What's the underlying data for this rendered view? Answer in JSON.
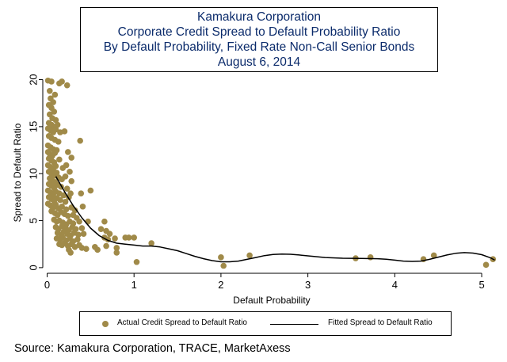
{
  "chart_data": {
    "type": "scatter",
    "title_lines": [
      "Kamakura Corporation",
      "Corporate Credit Spread to Default Probability Ratio",
      "By Default Probability, Fixed Rate Non-Call Senior Bonds",
      "August 6, 2014"
    ],
    "xlabel": "Default Probability",
    "ylabel": "Spread to Default Ratio",
    "xlim": [
      -0.05,
      5.2
    ],
    "ylim": [
      -0.6,
      20.3
    ],
    "x_ticks": [
      0,
      1,
      2,
      3,
      4,
      5
    ],
    "y_ticks": [
      0,
      5,
      10,
      15,
      20
    ],
    "grid": false,
    "legend": "bottom",
    "series": [
      {
        "name": "Actual Credit Spread to Default Ratio",
        "kind": "scatter",
        "color": "#a08a49",
        "points": [
          [
            0.01,
            19.9
          ],
          [
            0.05,
            19.8
          ],
          [
            0.14,
            19.6
          ],
          [
            0.17,
            19.8
          ],
          [
            0.23,
            19.4
          ],
          [
            0.03,
            18.8
          ],
          [
            0.09,
            18.4
          ],
          [
            0.04,
            18.0
          ],
          [
            0.07,
            17.6
          ],
          [
            0.02,
            17.3
          ],
          [
            0.05,
            17.0
          ],
          [
            0.08,
            16.6
          ],
          [
            0.03,
            16.3
          ],
          [
            0.06,
            15.9
          ],
          [
            0.1,
            15.7
          ],
          [
            0.02,
            15.4
          ],
          [
            0.05,
            15.2
          ],
          [
            0.08,
            15.0
          ],
          [
            0.12,
            15.2
          ],
          [
            0.01,
            14.8
          ],
          [
            0.04,
            14.6
          ],
          [
            0.07,
            14.4
          ],
          [
            0.1,
            14.7
          ],
          [
            0.15,
            14.4
          ],
          [
            0.2,
            14.5
          ],
          [
            0.02,
            14.0
          ],
          [
            0.05,
            13.8
          ],
          [
            0.09,
            13.6
          ],
          [
            0.13,
            13.4
          ],
          [
            0.38,
            13.5
          ],
          [
            0.01,
            13.0
          ],
          [
            0.04,
            12.8
          ],
          [
            0.07,
            12.6
          ],
          [
            0.11,
            12.5
          ],
          [
            0.01,
            12.3
          ],
          [
            0.03,
            12.1
          ],
          [
            0.06,
            11.9
          ],
          [
            0.09,
            12.2
          ],
          [
            0.24,
            12.3
          ],
          [
            0.02,
            11.6
          ],
          [
            0.05,
            11.4
          ],
          [
            0.08,
            11.2
          ],
          [
            0.14,
            11.5
          ],
          [
            0.28,
            11.7
          ],
          [
            0.01,
            10.9
          ],
          [
            0.04,
            10.7
          ],
          [
            0.07,
            10.5
          ],
          [
            0.1,
            10.8
          ],
          [
            0.18,
            10.6
          ],
          [
            0.22,
            10.9
          ],
          [
            0.02,
            10.2
          ],
          [
            0.05,
            10.0
          ],
          [
            0.08,
            9.8
          ],
          [
            0.11,
            10.1
          ],
          [
            0.26,
            10.2
          ],
          [
            0.03,
            9.5
          ],
          [
            0.06,
            9.3
          ],
          [
            0.09,
            9.1
          ],
          [
            0.13,
            9.6
          ],
          [
            0.17,
            9.4
          ],
          [
            0.28,
            9.2
          ],
          [
            0.21,
            9.7
          ],
          [
            0.02,
            8.9
          ],
          [
            0.05,
            8.7
          ],
          [
            0.08,
            8.5
          ],
          [
            0.12,
            8.8
          ],
          [
            0.16,
            8.6
          ],
          [
            0.23,
            8.4
          ],
          [
            0.01,
            8.2
          ],
          [
            0.04,
            8.0
          ],
          [
            0.07,
            7.8
          ],
          [
            0.1,
            8.1
          ],
          [
            0.14,
            7.9
          ],
          [
            0.19,
            7.7
          ],
          [
            0.27,
            7.9
          ],
          [
            0.39,
            7.9
          ],
          [
            0.5,
            8.2
          ],
          [
            0.02,
            7.5
          ],
          [
            0.05,
            7.3
          ],
          [
            0.08,
            7.1
          ],
          [
            0.11,
            7.4
          ],
          [
            0.15,
            7.2
          ],
          [
            0.21,
            7.0
          ],
          [
            0.25,
            7.5
          ],
          [
            0.01,
            6.8
          ],
          [
            0.04,
            6.6
          ],
          [
            0.07,
            6.4
          ],
          [
            0.1,
            6.7
          ],
          [
            0.13,
            6.3
          ],
          [
            0.17,
            6.5
          ],
          [
            0.22,
            6.2
          ],
          [
            0.28,
            6.4
          ],
          [
            0.32,
            6.1
          ],
          [
            0.41,
            6.5
          ],
          [
            0.05,
            6.0
          ],
          [
            0.09,
            5.8
          ],
          [
            0.12,
            5.6
          ],
          [
            0.16,
            5.9
          ],
          [
            0.2,
            5.7
          ],
          [
            0.24,
            5.5
          ],
          [
            0.3,
            5.6
          ],
          [
            0.34,
            5.3
          ],
          [
            0.08,
            5.1
          ],
          [
            0.11,
            4.9
          ],
          [
            0.14,
            5.0
          ],
          [
            0.18,
            4.8
          ],
          [
            0.22,
            4.6
          ],
          [
            0.26,
            4.9
          ],
          [
            0.3,
            4.7
          ],
          [
            0.37,
            4.9
          ],
          [
            0.47,
            4.9
          ],
          [
            0.66,
            4.9
          ],
          [
            0.1,
            4.3
          ],
          [
            0.13,
            4.1
          ],
          [
            0.17,
            4.4
          ],
          [
            0.21,
            4.2
          ],
          [
            0.25,
            4.0
          ],
          [
            0.29,
            4.3
          ],
          [
            0.33,
            4.1
          ],
          [
            0.4,
            4.2
          ],
          [
            0.62,
            4.1
          ],
          [
            0.68,
            3.9
          ],
          [
            0.12,
            3.7
          ],
          [
            0.16,
            3.5
          ],
          [
            0.19,
            3.8
          ],
          [
            0.23,
            3.6
          ],
          [
            0.27,
            3.4
          ],
          [
            0.31,
            3.7
          ],
          [
            0.36,
            3.5
          ],
          [
            0.42,
            3.6
          ],
          [
            0.72,
            3.6
          ],
          [
            0.11,
            3.1
          ],
          [
            0.15,
            3.0
          ],
          [
            0.18,
            3.2
          ],
          [
            0.22,
            2.9
          ],
          [
            0.26,
            3.1
          ],
          [
            0.3,
            2.8
          ],
          [
            0.35,
            3.0
          ],
          [
            0.66,
            3.2
          ],
          [
            0.7,
            3.0
          ],
          [
            0.78,
            3.1
          ],
          [
            0.9,
            3.2
          ],
          [
            0.94,
            3.2
          ],
          [
            1.0,
            3.2
          ],
          [
            0.14,
            2.5
          ],
          [
            0.17,
            2.4
          ],
          [
            0.2,
            2.6
          ],
          [
            0.24,
            2.3
          ],
          [
            0.28,
            2.5
          ],
          [
            0.32,
            2.2
          ],
          [
            0.37,
            2.4
          ],
          [
            0.4,
            2.1
          ],
          [
            0.55,
            2.2
          ],
          [
            0.68,
            2.3
          ],
          [
            0.8,
            2.1
          ],
          [
            1.2,
            2.6
          ],
          [
            0.25,
            1.9
          ],
          [
            0.45,
            2.0
          ],
          [
            0.58,
            1.9
          ],
          [
            0.27,
            1.6
          ],
          [
            0.8,
            1.6
          ],
          [
            1.03,
            0.6
          ],
          [
            2.0,
            1.1
          ],
          [
            2.03,
            0.2
          ],
          [
            2.33,
            1.3
          ],
          [
            3.55,
            1.0
          ],
          [
            3.72,
            1.1
          ],
          [
            4.33,
            0.9
          ],
          [
            4.45,
            1.3
          ],
          [
            5.05,
            0.3
          ],
          [
            5.13,
            0.9
          ]
        ]
      },
      {
        "name": "Fitted Spread to Default Ratio",
        "kind": "line",
        "color": "#000000",
        "points": [
          [
            0.1,
            9.7
          ],
          [
            0.2,
            8.1
          ],
          [
            0.3,
            6.6
          ],
          [
            0.4,
            5.3
          ],
          [
            0.5,
            4.2
          ],
          [
            0.6,
            3.4
          ],
          [
            0.7,
            2.9
          ],
          [
            0.8,
            2.6
          ],
          [
            0.9,
            2.5
          ],
          [
            1.0,
            2.4
          ],
          [
            1.1,
            2.3
          ],
          [
            1.2,
            2.3
          ],
          [
            1.3,
            2.2
          ],
          [
            1.4,
            2.0
          ],
          [
            1.5,
            1.8
          ],
          [
            1.6,
            1.5
          ],
          [
            1.7,
            1.2
          ],
          [
            1.8,
            0.95
          ],
          [
            1.9,
            0.75
          ],
          [
            2.0,
            0.62
          ],
          [
            2.1,
            0.62
          ],
          [
            2.2,
            0.7
          ],
          [
            2.3,
            0.88
          ],
          [
            2.4,
            1.08
          ],
          [
            2.5,
            1.28
          ],
          [
            2.6,
            1.4
          ],
          [
            2.7,
            1.45
          ],
          [
            2.8,
            1.42
          ],
          [
            2.9,
            1.35
          ],
          [
            3.0,
            1.25
          ],
          [
            3.2,
            1.08
          ],
          [
            3.4,
            1.0
          ],
          [
            3.6,
            0.98
          ],
          [
            3.8,
            0.95
          ],
          [
            3.9,
            0.9
          ],
          [
            4.0,
            0.8
          ],
          [
            4.1,
            0.7
          ],
          [
            4.2,
            0.66
          ],
          [
            4.3,
            0.7
          ],
          [
            4.4,
            0.88
          ],
          [
            4.5,
            1.12
          ],
          [
            4.6,
            1.35
          ],
          [
            4.7,
            1.52
          ],
          [
            4.8,
            1.6
          ],
          [
            4.9,
            1.55
          ],
          [
            5.0,
            1.38
          ],
          [
            5.1,
            1.05
          ],
          [
            5.15,
            0.8
          ]
        ]
      }
    ]
  },
  "source_text": "Source: Kamakura Corporation, TRACE, MarketAxess"
}
